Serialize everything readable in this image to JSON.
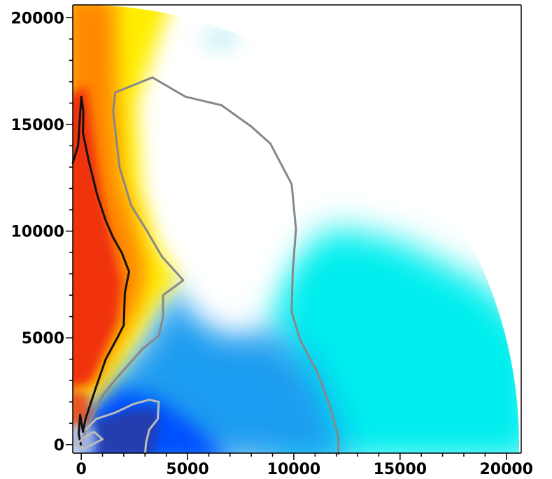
{
  "chart_data": {
    "type": "heatmap",
    "title": "",
    "xlabel": "",
    "ylabel": "",
    "xlim": [
      -400,
      20700
    ],
    "ylim": [
      -400,
      20600
    ],
    "x_ticks": [
      0,
      5000,
      10000,
      15000,
      20000
    ],
    "y_ticks": [
      0,
      5000,
      10000,
      15000,
      20000
    ],
    "x_tick_labels": [
      "0",
      "5000",
      "10000",
      "15000",
      "20000"
    ],
    "y_tick_labels": [
      "0",
      "5000",
      "10000",
      "15000",
      "20000"
    ],
    "domain_radius": 20600,
    "grid": false,
    "legend": "none",
    "colors": {
      "red": "#f03010",
      "orange": "#ff8800",
      "yellow": "#ffee00",
      "white": "#ffffff",
      "cyan": "#00eeee",
      "blue": "#0050ff",
      "dark_blue": "#1a2a8a"
    },
    "contours": [
      {
        "color": "#111111",
        "points": [
          [
            -400,
            13200
          ],
          [
            -150,
            14000
          ],
          [
            0,
            16300
          ],
          [
            100,
            15600
          ],
          [
            80,
            14600
          ],
          [
            350,
            13300
          ],
          [
            750,
            11700
          ],
          [
            1150,
            10500
          ],
          [
            1500,
            9700
          ],
          [
            1900,
            9000
          ],
          [
            2250,
            8100
          ],
          [
            2050,
            7100
          ],
          [
            2000,
            5600
          ],
          [
            1750,
            5100
          ],
          [
            1150,
            4000
          ],
          [
            700,
            2700
          ],
          [
            400,
            1800
          ],
          [
            200,
            1200
          ],
          [
            80,
            600
          ],
          [
            -50,
            1400
          ],
          [
            -120,
            500
          ],
          [
            -20,
            0
          ]
        ]
      },
      {
        "color": "#888888",
        "points": [
          [
            1500,
            15600
          ],
          [
            1600,
            16500
          ],
          [
            3350,
            17200
          ],
          [
            4900,
            16300
          ],
          [
            6600,
            15900
          ],
          [
            8000,
            14900
          ],
          [
            8900,
            14100
          ],
          [
            9900,
            12200
          ],
          [
            10100,
            10100
          ],
          [
            9950,
            8100
          ],
          [
            9900,
            6200
          ],
          [
            10300,
            4900
          ],
          [
            11100,
            3400
          ],
          [
            11700,
            1800
          ],
          [
            12100,
            350
          ],
          [
            12100,
            -450
          ]
        ]
      },
      {
        "color": "#888888",
        "points": [
          [
            1500,
            15600
          ],
          [
            1650,
            14300
          ],
          [
            1800,
            13000
          ],
          [
            2350,
            11200
          ],
          [
            3100,
            10000
          ],
          [
            3800,
            8800
          ],
          [
            4800,
            7700
          ],
          [
            3850,
            7000
          ],
          [
            3850,
            6000
          ],
          [
            3650,
            5100
          ],
          [
            2900,
            4500
          ],
          [
            1650,
            3100
          ],
          [
            1000,
            2300
          ],
          [
            600,
            1500
          ],
          [
            280,
            850
          ],
          [
            80,
            250
          ]
        ]
      },
      {
        "color": "#bbbbbb",
        "points": [
          [
            200,
            700
          ],
          [
            700,
            1200
          ],
          [
            1600,
            1500
          ],
          [
            2450,
            1900
          ],
          [
            3200,
            2100
          ],
          [
            3650,
            2000
          ],
          [
            3600,
            1200
          ],
          [
            3200,
            700
          ],
          [
            3050,
            100
          ],
          [
            3000,
            -450
          ]
        ]
      },
      {
        "color": "#bbbbbb",
        "points": [
          [
            -250,
            0
          ],
          [
            150,
            350
          ],
          [
            600,
            600
          ],
          [
            1000,
            250
          ],
          [
            500,
            0
          ],
          [
            150,
            -200
          ],
          [
            -250,
            0
          ]
        ]
      }
    ]
  }
}
